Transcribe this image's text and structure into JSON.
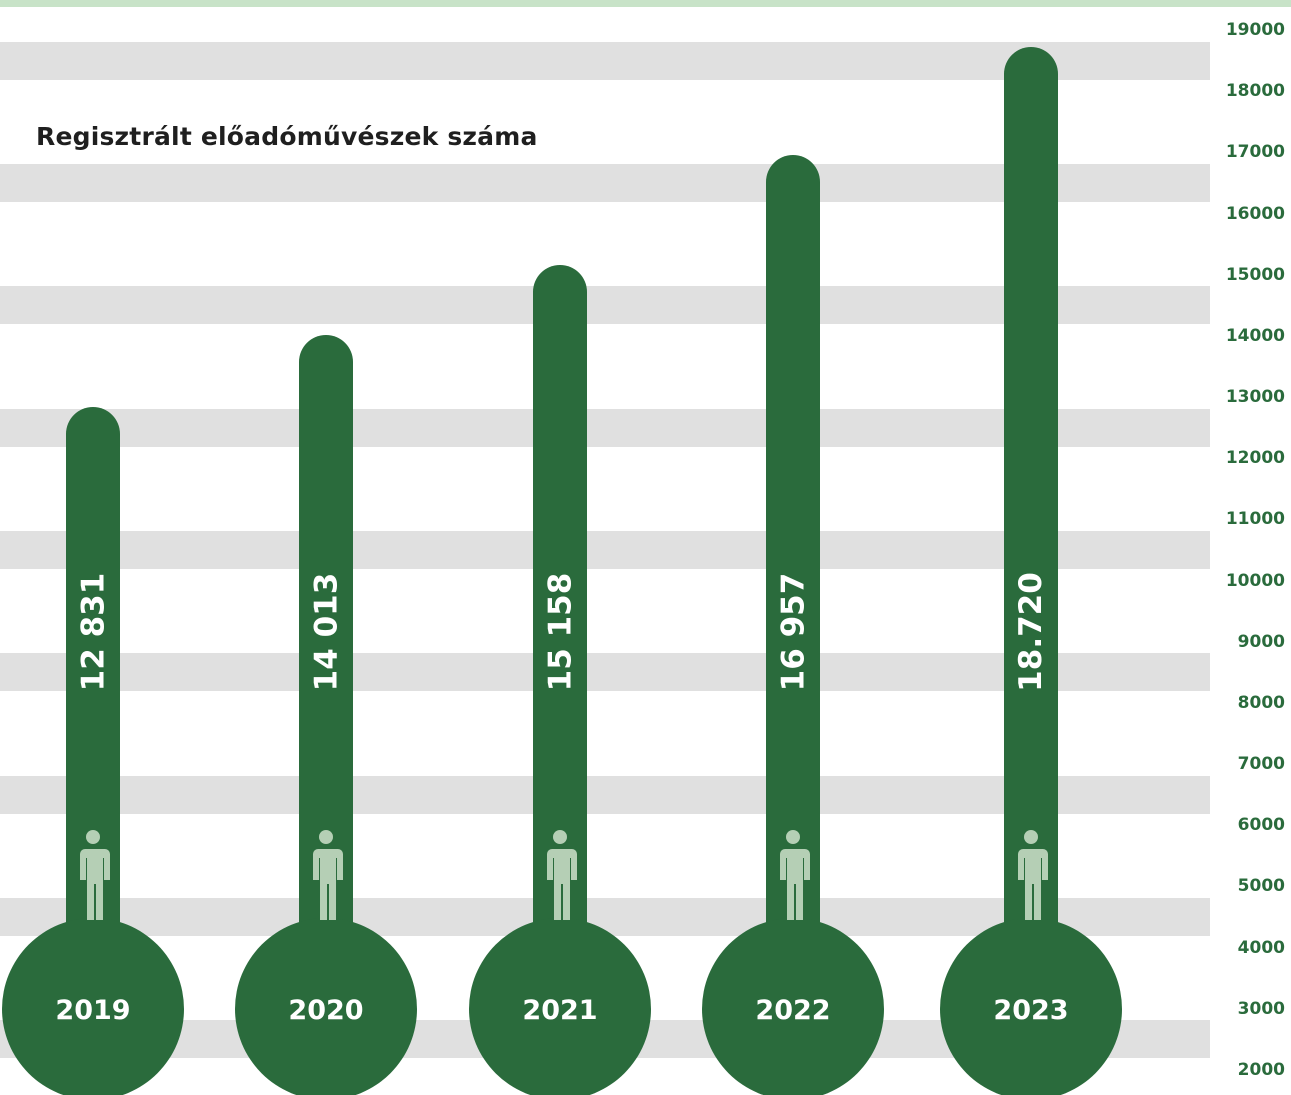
{
  "chart_data": {
    "type": "bar",
    "title": "Regisztrált előadóművészek száma",
    "categories": [
      "2019",
      "2020",
      "2021",
      "2022",
      "2023"
    ],
    "values": [
      12831,
      14013,
      15158,
      16957,
      18720
    ],
    "value_labels": [
      "12 831",
      "14 013",
      "15 158",
      "16 957",
      "18.720"
    ],
    "y_ticks": [
      19000,
      18000,
      17000,
      16000,
      15000,
      14000,
      13000,
      12000,
      11000,
      10000,
      9000,
      8000,
      7000,
      6000,
      5000,
      4000,
      3000,
      2000
    ],
    "y_axis_position": "right",
    "grid": "alternating gray bands",
    "bar_color": "#2a6b3c",
    "icon_color": "#b5cfb5",
    "band_color": "#e0e0e0",
    "icon": "person-icon"
  }
}
